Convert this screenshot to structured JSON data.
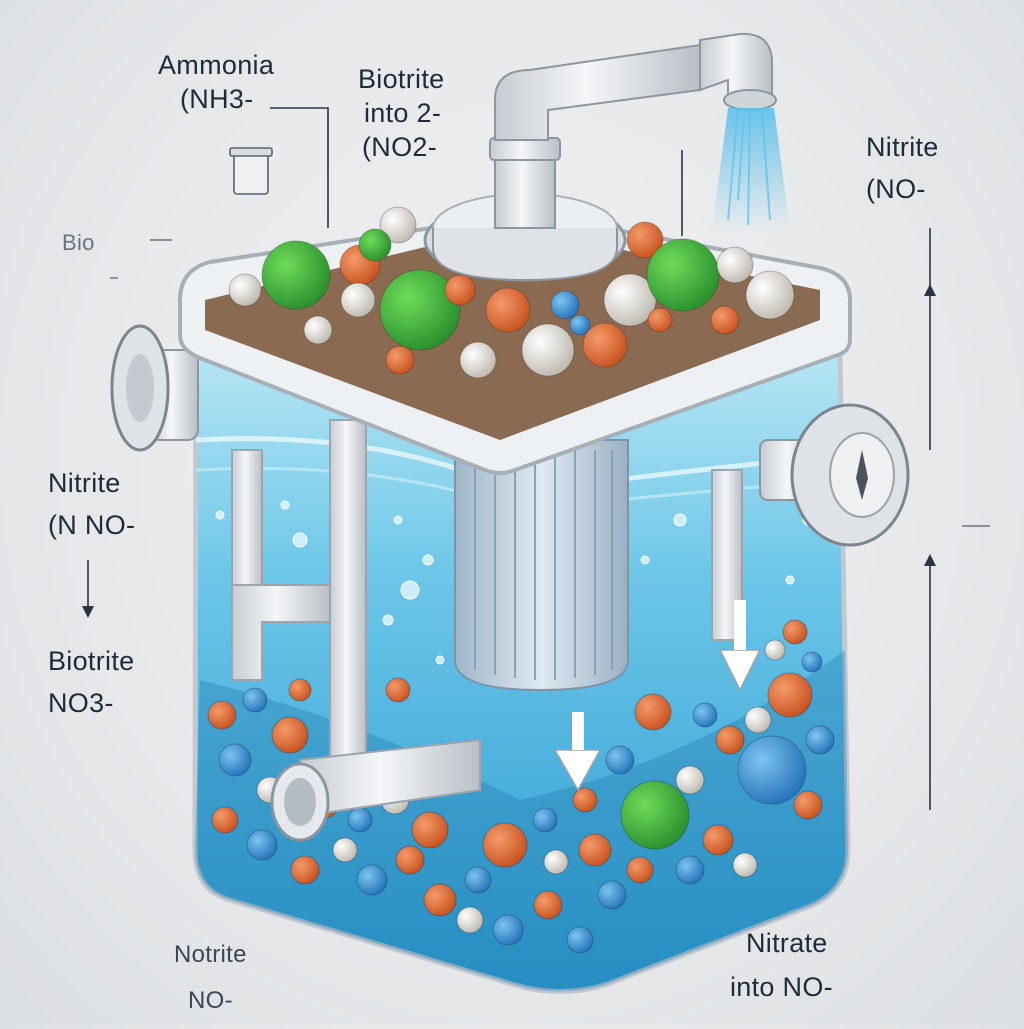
{
  "labels": {
    "ammonia": {
      "line1": "Ammonia",
      "line2": "(NH3-"
    },
    "biotrite_top": {
      "line1": "Biotrite",
      "line2": "into 2-",
      "line3": "(NO2-"
    },
    "bio": "Bio",
    "nitrite_right": {
      "line1": "Nitrite",
      "line2": "(NO-"
    },
    "nitrite_left": {
      "line1": "Nitrite",
      "line2": "(N  NO-"
    },
    "biotrite_left": {
      "line1": "Biotrite",
      "line2": "NO3-"
    },
    "notrite_bottom": {
      "line1": "Notrite",
      "line2": "NO-"
    },
    "nitrate_bottom": {
      "line1": "Nitrate",
      "line2": "into NO-"
    }
  },
  "colors": {
    "water_top": "#a9def0",
    "water_bottom": "#2fa3d6",
    "tank_frame": "#e9ecef",
    "pipe": "#e3e6ea",
    "media_orange": "#e0693a",
    "media_green": "#3fae3f",
    "media_blue": "#3a8fd0",
    "media_white": "#eceae4"
  }
}
